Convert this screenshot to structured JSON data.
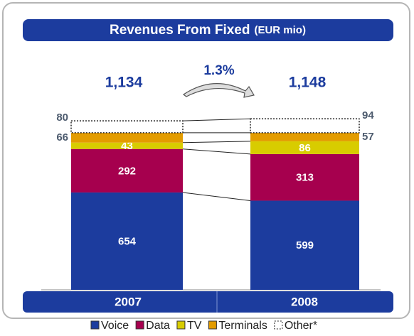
{
  "chart_data": {
    "type": "stacked_bar",
    "title": "Revenues From Fixed",
    "subtitle": "(EUR mio)",
    "categories": [
      "2007",
      "2008"
    ],
    "total_labels": [
      "1,134",
      "1,148"
    ],
    "annotation": "1.3%",
    "series": [
      {
        "name": "Voice",
        "color": "#1c3c9e",
        "values": [
          654,
          599
        ]
      },
      {
        "name": "Data",
        "color": "#a6004e",
        "values": [
          292,
          313
        ]
      },
      {
        "name": "TV",
        "color": "#d8cc00",
        "values": [
          43,
          86
        ]
      },
      {
        "name": "Terminals",
        "color": "#e39c00",
        "values": [
          66,
          57
        ]
      },
      {
        "name": "Other*",
        "color": "#ffffff",
        "values": [
          80,
          94
        ]
      }
    ],
    "ylim": [
      0,
      1150
    ]
  }
}
